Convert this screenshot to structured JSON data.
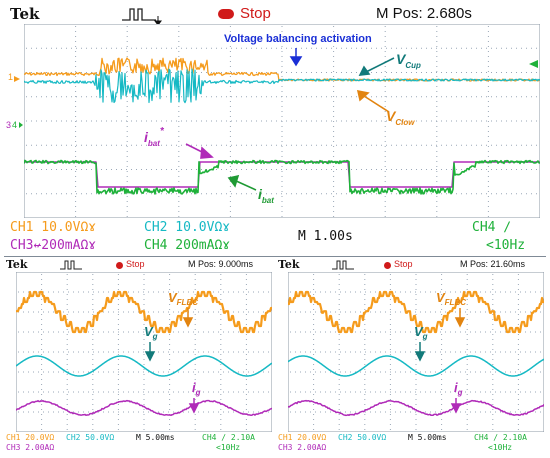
{
  "colors": {
    "ch1": "#f59b1c",
    "ch2": "#16b9c4",
    "ch3": "#b02bb8",
    "ch4": "#1fb13a",
    "stop": "#d01a1a",
    "grid": "#9aa7b7",
    "annotation_blue": "#1a2fd6"
  },
  "top": {
    "brand": "Tek",
    "run_state": "Stop",
    "position": "M Pos: 2.680s",
    "annotation_balancing": "Voltage balancing activation",
    "label_vcup_main": "V",
    "label_vcup_sub": "Cup",
    "label_vclow_main": "V",
    "label_vclow_sub": "Clow",
    "label_ibat_ref_main": "i",
    "label_ibat_ref_sub": "bat",
    "label_ibat_ref_sup": "*",
    "label_ibat_main": "i",
    "label_ibat_sub": "bat",
    "ch1_readout": "CH1  10.0VΩɤ",
    "ch2_readout": "CH2  10.0VΩɤ",
    "ch4_trigger": "CH4 ∕",
    "ch3_readout": "CH3↚200mAΩɤ",
    "ch4_readout": "CH4  200mAΩɤ",
    "timebase": "M 1.00s",
    "freq": "<10Hz"
  },
  "bottom_left": {
    "brand": "Tek",
    "run_state": "Stop",
    "position": "M Pos: 9.000ms",
    "label_vflbc_main": "V",
    "label_vflbc_sub": "FLBC",
    "label_vg_main": "V",
    "label_vg_sub": "g",
    "label_ig_main": "i",
    "label_ig_sub": "g",
    "ch1_readout": "CH1  20.0VΩ",
    "ch2_readout": "CH2  50.0VΩ",
    "timebase": "M 5.00ms",
    "ch4_trigger": "CH4 ∕ 2.10A",
    "ch3_readout": "CH3  2.00AΩ",
    "freq": "<10Hz"
  },
  "bottom_right": {
    "brand": "Tek",
    "run_state": "Stop",
    "position": "M Pos: 21.60ms",
    "label_vflbc_main": "V",
    "label_vflbc_sub": "FLBC",
    "label_vg_main": "V",
    "label_vg_sub": "g",
    "label_ig_main": "i",
    "label_ig_sub": "g",
    "ch1_readout": "CH1  20.0VΩ",
    "ch2_readout": "CH2  50.0VΩ",
    "timebase": "M 5.00ms",
    "ch4_trigger": "CH4 ∕ 2.10A",
    "ch3_readout": "CH3  2.00AΩ",
    "freq": "<10Hz"
  }
}
